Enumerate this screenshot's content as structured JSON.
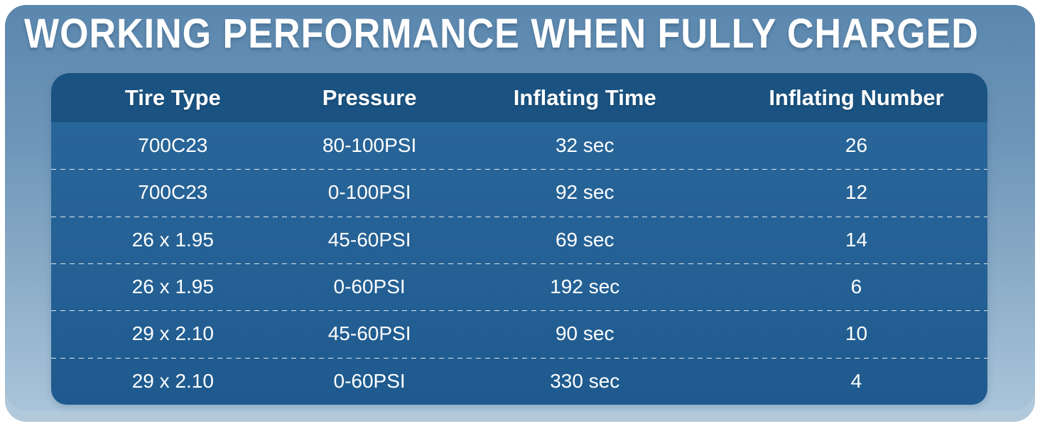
{
  "title": "WORKING PERFORMANCE WHEN FULLY CHARGED",
  "chart_data": {
    "type": "table",
    "title": "WORKING PERFORMANCE WHEN FULLY CHARGED",
    "columns": [
      "Tire Type",
      "Pressure",
      "Inflating Time",
      "Inflating Number"
    ],
    "rows": [
      [
        "700C23",
        "80-100PSI",
        "32 sec",
        "26"
      ],
      [
        "700C23",
        "0-100PSI",
        "92 sec",
        "12"
      ],
      [
        "26 x 1.95",
        "45-60PSI",
        "69 sec",
        "14"
      ],
      [
        "26 x 1.95",
        "0-60PSI",
        "192 sec",
        "6"
      ],
      [
        "29 x 2.10",
        "45-60PSI",
        "90 sec",
        "10"
      ],
      [
        "29 x 2.10",
        "0-60PSI",
        "330 sec",
        "4"
      ]
    ],
    "layout": {
      "legend": "none",
      "grid": "dashed-horizontal-separators"
    }
  },
  "colors": {
    "table_header_bg": "#1a5381",
    "table_body_bg_top": "#286598",
    "table_body_bg_bottom": "#1e5a8e",
    "panel_gradient_top": "#5b87ae",
    "panel_gradient_bottom": "#a9c4da",
    "back_panel": "#b2c9dc",
    "canvas": "#ffffff",
    "text": "#ffffff"
  }
}
